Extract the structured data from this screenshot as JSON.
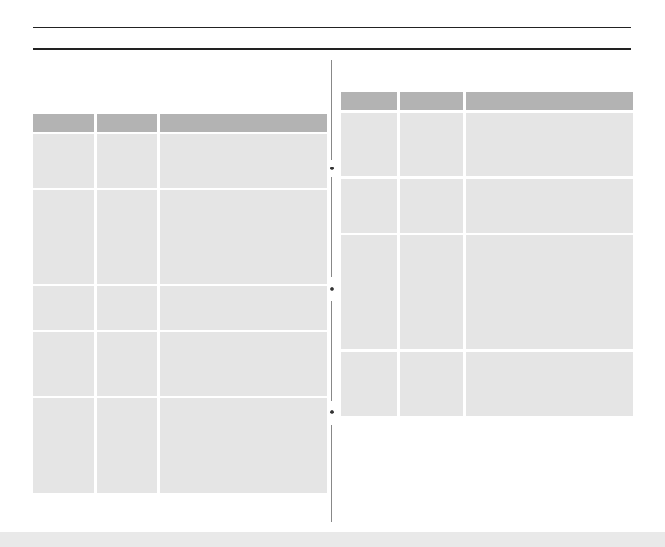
{
  "document": {
    "left_table": {
      "headers": [
        "",
        "",
        ""
      ],
      "rows": [
        [
          "",
          "",
          ""
        ],
        [
          "",
          "",
          ""
        ],
        [
          "",
          "",
          ""
        ],
        [
          "",
          "",
          ""
        ],
        [
          "",
          "",
          ""
        ]
      ]
    },
    "right_table": {
      "headers": [
        "",
        "",
        ""
      ],
      "rows": [
        [
          "",
          "",
          ""
        ],
        [
          "",
          "",
          ""
        ],
        [
          "",
          "",
          ""
        ],
        [
          "",
          "",
          ""
        ]
      ]
    },
    "colors": {
      "header": "#b3b3b3",
      "cell": "#e5e5e5",
      "rule": "#222222"
    }
  }
}
